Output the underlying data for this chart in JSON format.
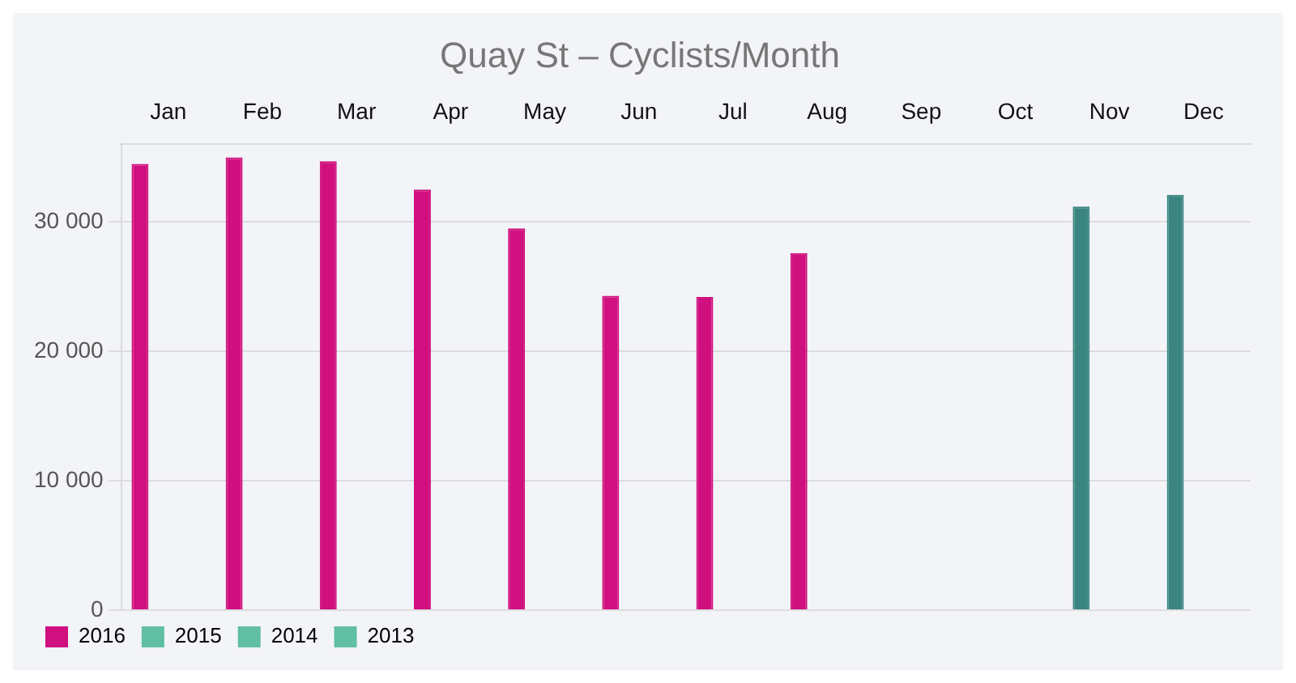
{
  "chart_data": {
    "type": "bar",
    "title": "Quay St – Cyclists/Month",
    "categories": [
      "Jan",
      "Feb",
      "Mar",
      "Apr",
      "May",
      "Jun",
      "Jul",
      "Aug",
      "Sep",
      "Oct",
      "Nov",
      "Dec"
    ],
    "series": [
      {
        "name": "2016",
        "colors": [
          "#d0107f",
          "#d0107f",
          "#d0107f",
          "#d0107f",
          "#d0107f",
          "#d0107f",
          "#d0107f",
          "#d0107f",
          "#3a8580",
          "#3a8580",
          "#3a8580",
          "#3a8580"
        ],
        "values": [
          34500,
          35000,
          34700,
          32500,
          29500,
          24300,
          24200,
          27600,
          0,
          0,
          31200,
          32100
        ]
      },
      {
        "name": "2015",
        "color": "#5fbfa0",
        "values": [
          0,
          0,
          0,
          0,
          0,
          0,
          0,
          0,
          0,
          0,
          0,
          0
        ]
      },
      {
        "name": "2014",
        "color": "#5fbfa0",
        "values": [
          0,
          0,
          0,
          0,
          0,
          0,
          0,
          0,
          0,
          0,
          0,
          0
        ]
      },
      {
        "name": "2013",
        "color": "#5fbfa0",
        "values": [
          0,
          0,
          0,
          0,
          0,
          0,
          0,
          0,
          0,
          0,
          0,
          0
        ]
      }
    ],
    "ylim": [
      0,
      36000
    ],
    "yticks": [
      {
        "value": 0,
        "label": "0"
      },
      {
        "value": 10000,
        "label": "10 000"
      },
      {
        "value": 20000,
        "label": "20 000"
      },
      {
        "value": 30000,
        "label": "30 000"
      }
    ],
    "grid": "y",
    "legend": "bottom left"
  }
}
